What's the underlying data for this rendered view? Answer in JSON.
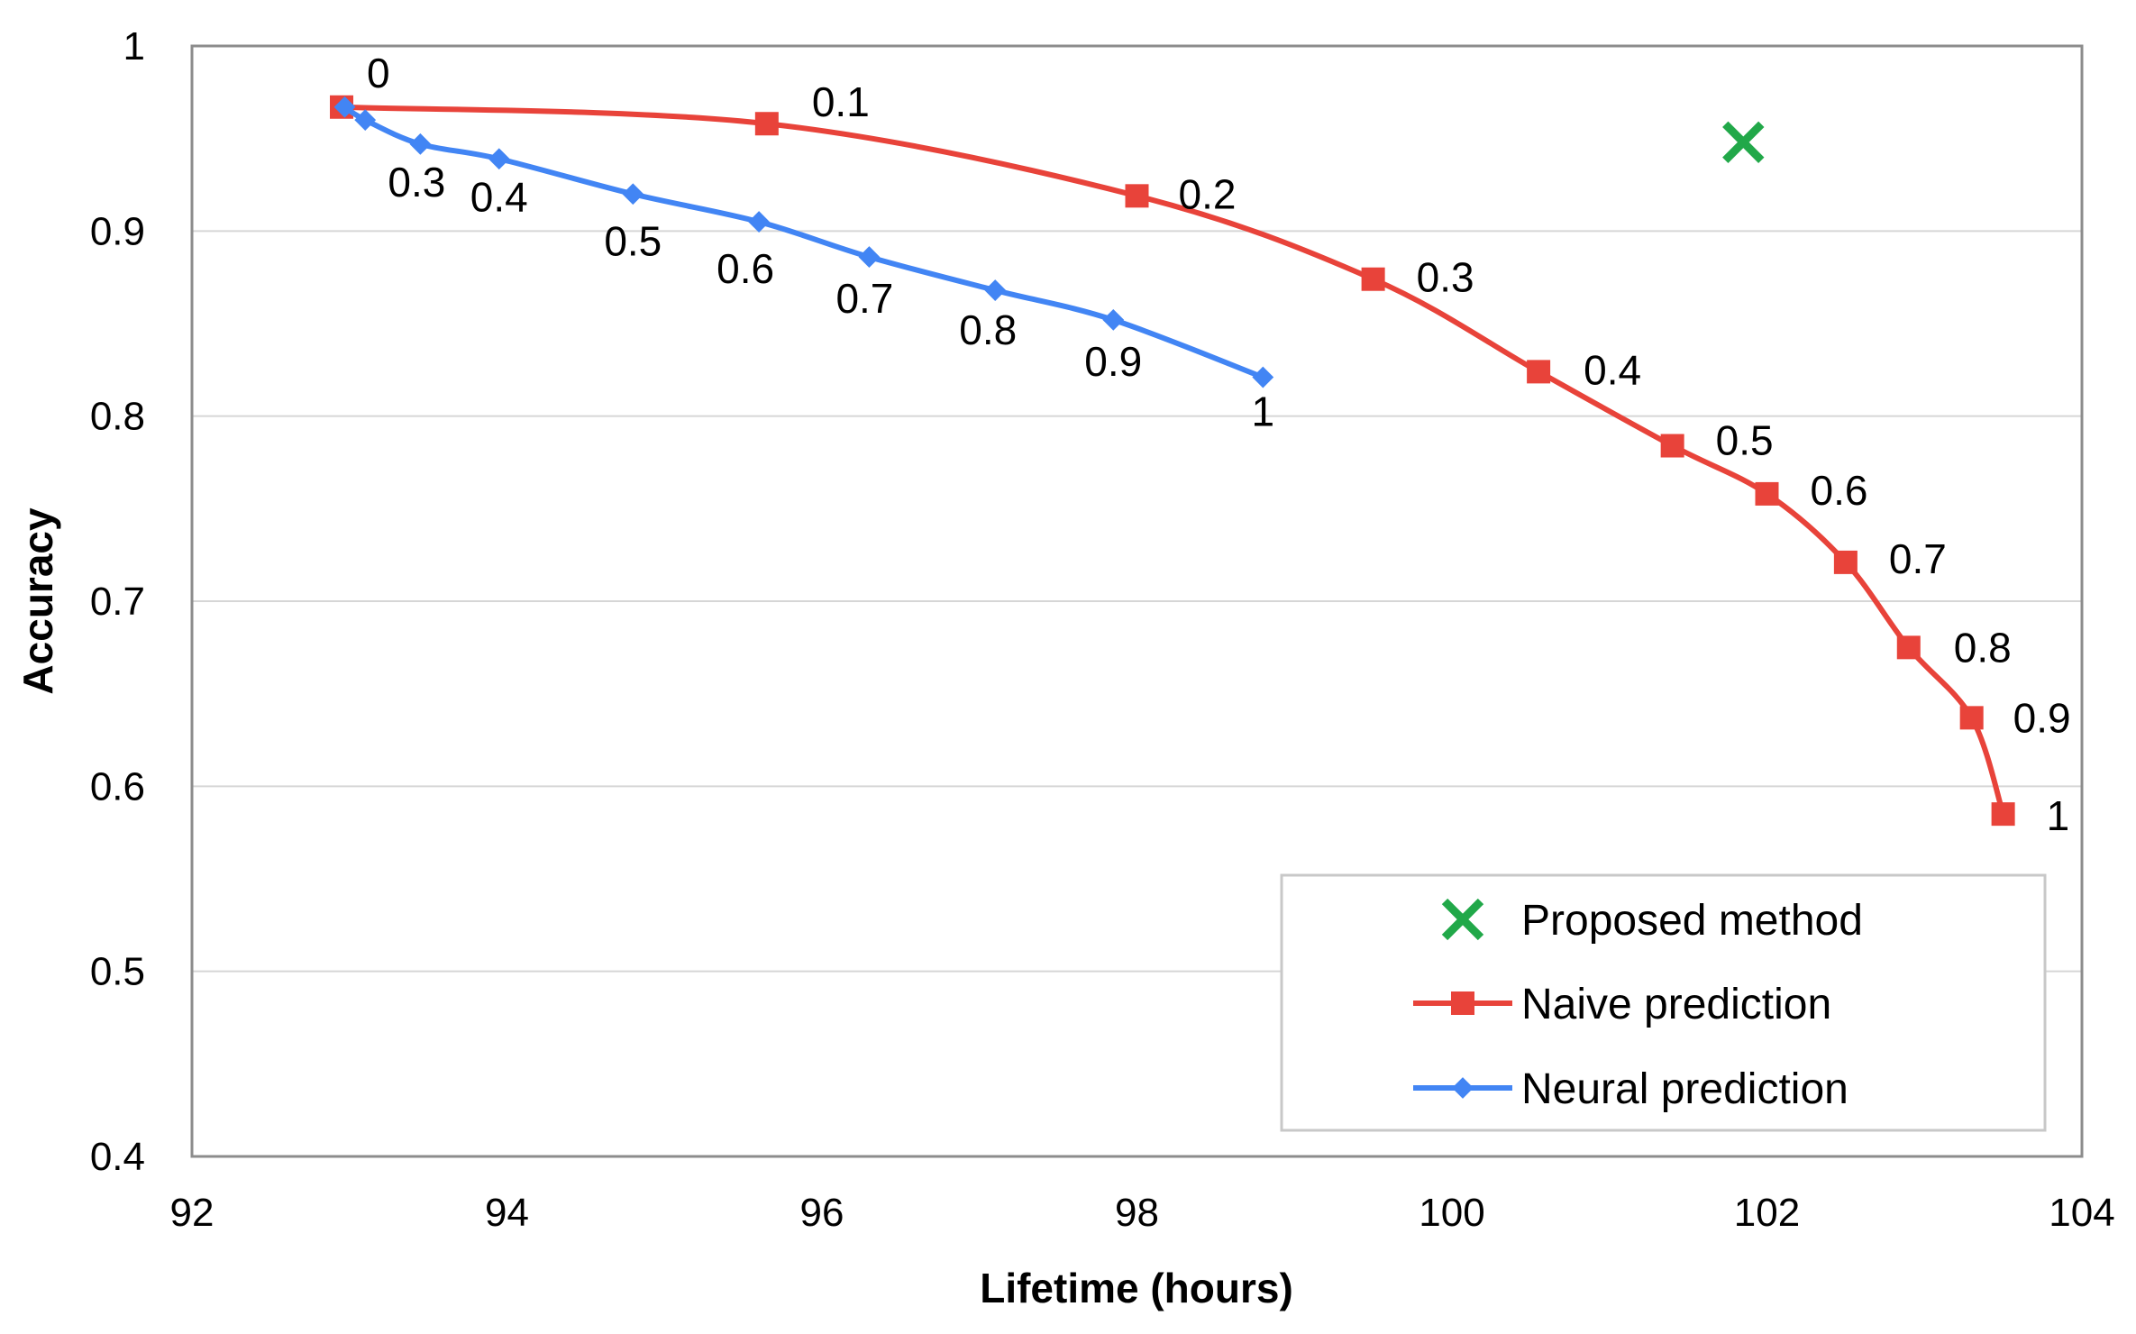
{
  "chart_data": {
    "type": "line",
    "title": "",
    "xlabel": "Lifetime (hours)",
    "ylabel": "Accuracy",
    "xlim": [
      92,
      104
    ],
    "ylim": [
      0.4,
      1
    ],
    "xticks": [
      92,
      94,
      96,
      98,
      100,
      102,
      104
    ],
    "yticks": [
      0.4,
      0.5,
      0.6,
      0.7,
      0.8,
      0.9,
      1
    ],
    "xtick_labels": [
      "92",
      "94",
      "96",
      "98",
      "100",
      "102",
      "104"
    ],
    "ytick_labels": [
      "0.4",
      "0.5",
      "0.6",
      "0.7",
      "0.8",
      "0.9",
      "1"
    ],
    "grid": "horizontal",
    "legend_position": "bottom-right",
    "series": [
      {
        "name": "Proposed method",
        "marker": "x",
        "color": "#21a849",
        "points": [
          {
            "x": 101.85,
            "y": 0.948
          }
        ],
        "labels": []
      },
      {
        "name": "Naive prediction",
        "marker": "square",
        "color": "#e8433a",
        "points": [
          {
            "x": 92.95,
            "y": 0.967
          },
          {
            "x": 95.65,
            "y": 0.958
          },
          {
            "x": 98.0,
            "y": 0.919
          },
          {
            "x": 99.5,
            "y": 0.874
          },
          {
            "x": 100.55,
            "y": 0.824
          },
          {
            "x": 101.4,
            "y": 0.784
          },
          {
            "x": 102.0,
            "y": 0.758
          },
          {
            "x": 102.5,
            "y": 0.721
          },
          {
            "x": 102.9,
            "y": 0.675
          },
          {
            "x": 103.3,
            "y": 0.637
          },
          {
            "x": 103.5,
            "y": 0.585
          }
        ],
        "labels": [
          "0",
          "0.1",
          "0.2",
          "0.3",
          "0.4",
          "0.5",
          "0.6",
          "0.7",
          "0.8",
          "0.9",
          "1"
        ]
      },
      {
        "name": "Neural prediction",
        "marker": "diamond",
        "color": "#4285f4",
        "points": [
          {
            "x": 92.97,
            "y": 0.967
          },
          {
            "x": 93.1,
            "y": 0.96
          },
          {
            "x": 93.45,
            "y": 0.947
          },
          {
            "x": 93.95,
            "y": 0.939
          },
          {
            "x": 94.8,
            "y": 0.92
          },
          {
            "x": 95.6,
            "y": 0.905
          },
          {
            "x": 96.3,
            "y": 0.886
          },
          {
            "x": 97.1,
            "y": 0.868
          },
          {
            "x": 97.85,
            "y": 0.852
          },
          {
            "x": 98.8,
            "y": 0.821
          }
        ],
        "labels": [
          "",
          "",
          "0.3",
          "0.4",
          "0.5",
          "0.6",
          "0.7",
          "0.8",
          "0.9",
          "1"
        ]
      }
    ]
  }
}
